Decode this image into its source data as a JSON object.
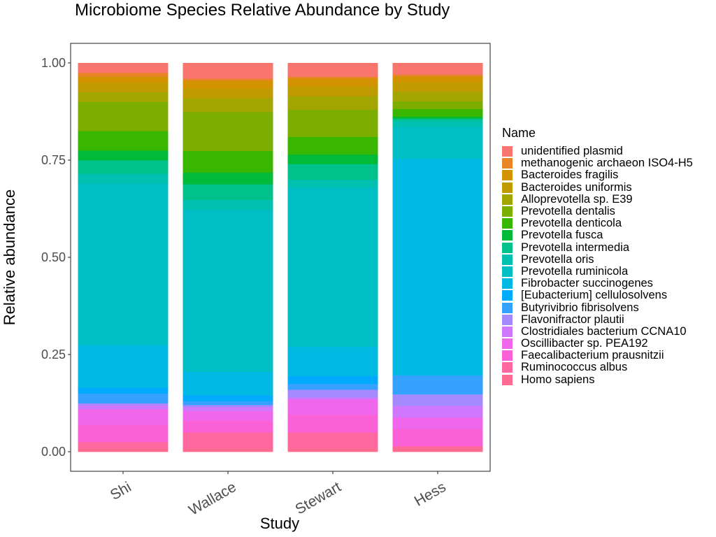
{
  "chart_data": {
    "type": "bar",
    "stacked": true,
    "title": "Microbiome Species Relative Abundance by Study",
    "xlabel": "Study",
    "ylabel": "Relative abundance",
    "ylim": [
      0,
      1
    ],
    "yticks": [
      "0.00",
      "0.25",
      "0.50",
      "0.75",
      "1.00"
    ],
    "categories": [
      "Shi",
      "Wallace",
      "Stewart",
      "Hess"
    ],
    "legend_title": "Name",
    "legend_position": "right",
    "grid": false,
    "series": [
      {
        "name": "Homo sapiens",
        "color": "#FF6C91",
        "values": [
          0.01,
          0.01,
          0.01,
          0.01
        ]
      },
      {
        "name": "Ruminococcus albus",
        "color": "#FF689F",
        "values": [
          0.015,
          0.04,
          0.04,
          0.005
        ]
      },
      {
        "name": "Faecalibacterium prausnitzii",
        "color": "#FB61D7",
        "values": [
          0.045,
          0.03,
          0.045,
          0.045
        ]
      },
      {
        "name": "Oscillibacter sp. PEA192",
        "color": "#EF67EB",
        "values": [
          0.04,
          0.025,
          0.04,
          0.03
        ]
      },
      {
        "name": "Clostridiales bacterium CCNA10",
        "color": "#CF78FF",
        "values": [
          0.01,
          0.01,
          0.005,
          0.03
        ]
      },
      {
        "name": "Flavonifractor plautii",
        "color": "#A58AFF",
        "values": [
          0.005,
          0.005,
          0.02,
          0.03
        ]
      },
      {
        "name": "Butyrivibrio fibrisolvens",
        "color": "#35A2FF",
        "values": [
          0.025,
          0.01,
          0.015,
          0.05
        ]
      },
      {
        "name": "[Eubacterium] cellulosolvens",
        "color": "#00ABFD",
        "values": [
          0.015,
          0.015,
          0.02,
          0.0
        ]
      },
      {
        "name": "Fibrobacter succinogenes",
        "color": "#00B9E3",
        "values": [
          0.11,
          0.06,
          0.075,
          0.565
        ]
      },
      {
        "name": "Prevotella ruminicola",
        "color": "#00BFC4",
        "values": [
          0.415,
          0.415,
          0.41,
          0.085
        ]
      },
      {
        "name": "Prevotella oris",
        "color": "#00C0AF",
        "values": [
          0.025,
          0.025,
          0.02,
          0.015
        ]
      },
      {
        "name": "Prevotella intermedia",
        "color": "#00C08B",
        "values": [
          0.035,
          0.04,
          0.04,
          0.005
        ]
      },
      {
        "name": "Prevotella fusca",
        "color": "#00BA38",
        "values": [
          0.025,
          0.03,
          0.025,
          0.005
        ]
      },
      {
        "name": "Prevotella denticola",
        "color": "#39B600",
        "values": [
          0.05,
          0.055,
          0.045,
          0.02
        ]
      },
      {
        "name": "Prevotella dentalis",
        "color": "#7CAE00",
        "values": [
          0.075,
          0.1,
          0.07,
          0.02
        ]
      },
      {
        "name": "Alloprevotella sp. E39",
        "color": "#A3A500",
        "values": [
          0.025,
          0.035,
          0.035,
          0.025
        ]
      },
      {
        "name": "Bacteroides uniformis",
        "color": "#C09B00",
        "values": [
          0.025,
          0.025,
          0.025,
          0.025
        ]
      },
      {
        "name": "Bacteroides fragilis",
        "color": "#D39200",
        "values": [
          0.015,
          0.02,
          0.02,
          0.015
        ]
      },
      {
        "name": "methanogenic archaeon ISO4-H5",
        "color": "#E88526",
        "values": [
          0.01,
          0.005,
          0.005,
          0.005
        ]
      },
      {
        "name": "unidentified plasmid",
        "color": "#F8766D",
        "values": [
          0.025,
          0.04,
          0.035,
          0.03
        ]
      }
    ]
  }
}
